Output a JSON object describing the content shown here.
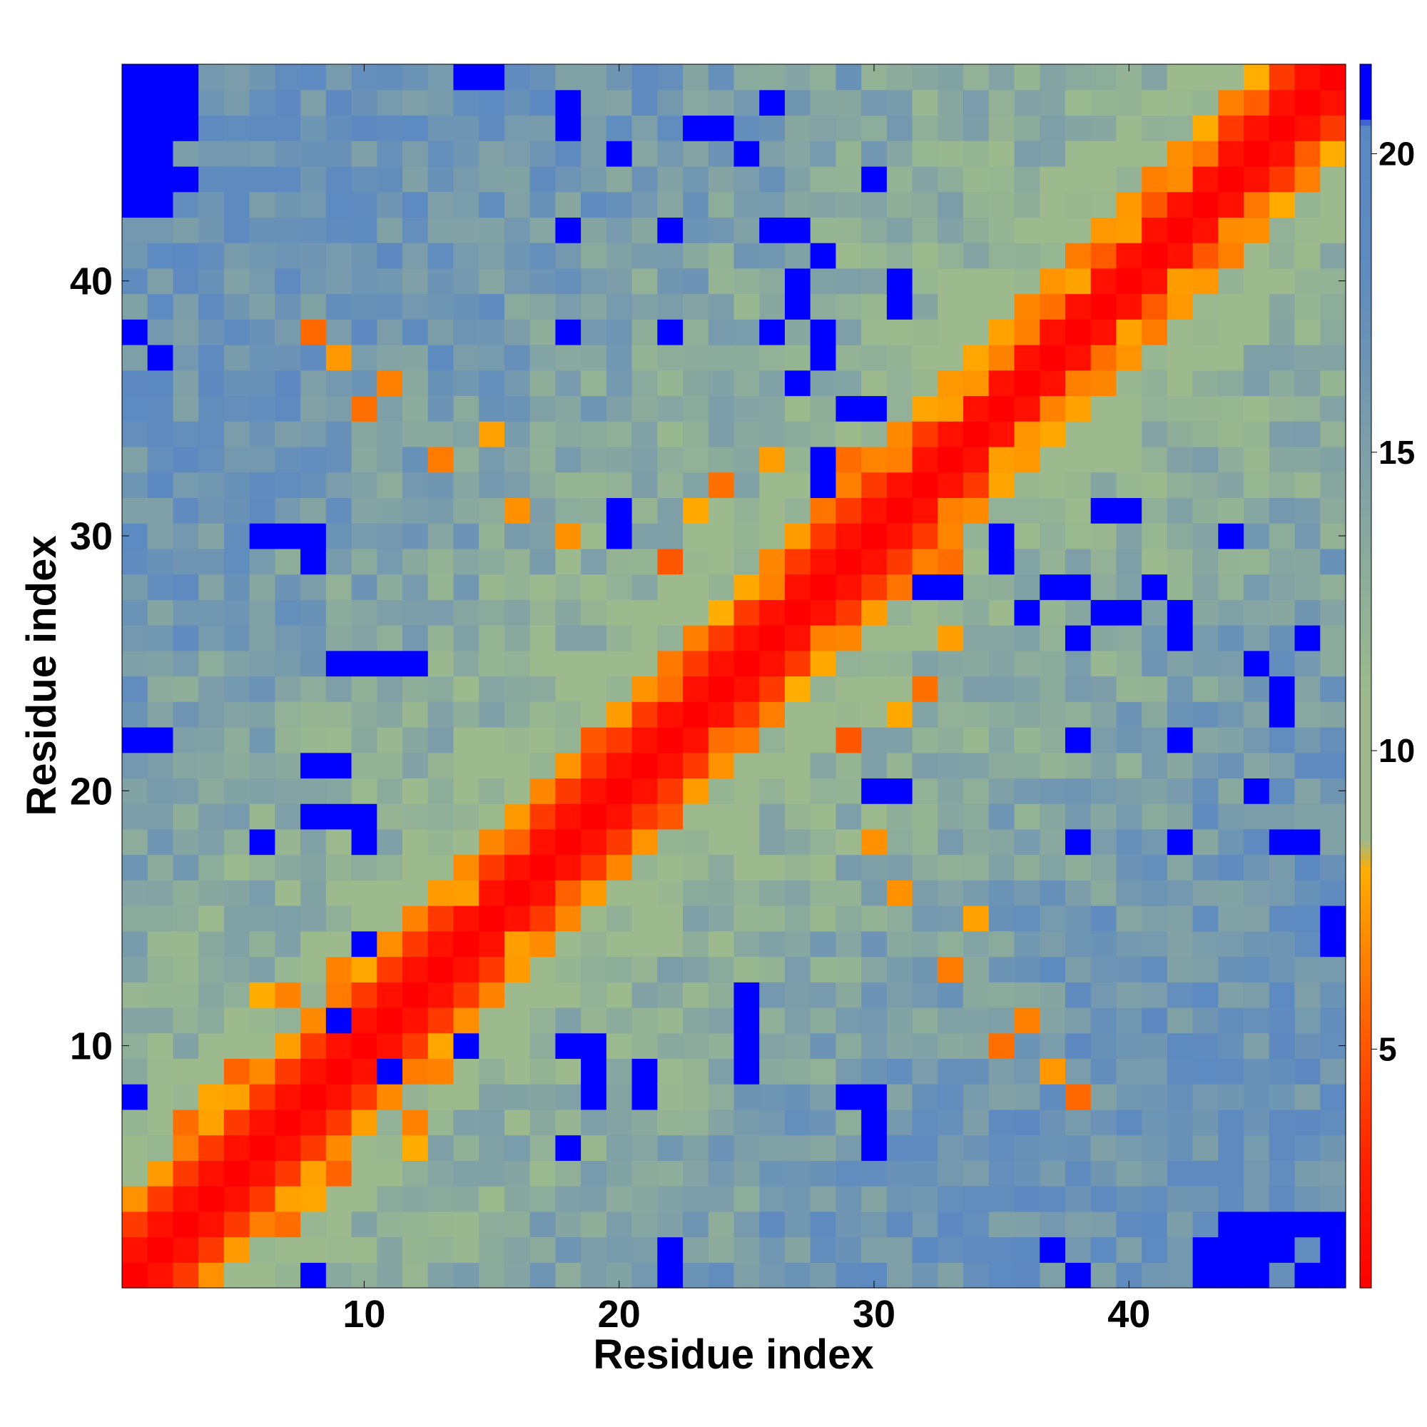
{
  "chart_data": {
    "type": "heatmap",
    "title": "",
    "xlabel": "Residue index",
    "ylabel": "Residue index",
    "n": 48,
    "xlim": [
      0.5,
      48.5
    ],
    "ylim": [
      0.5,
      48.5
    ],
    "xticks": [
      10,
      20,
      30,
      40
    ],
    "yticks": [
      10,
      20,
      30,
      40
    ],
    "colorbar": {
      "min": 1,
      "max": 21.5,
      "ticks": [
        5,
        10,
        15,
        20
      ],
      "position": "right",
      "palette": [
        {
          "v": 1,
          "c": "#ff0000"
        },
        {
          "v": 3,
          "c": "#ff1f00"
        },
        {
          "v": 5.5,
          "c": "#ff6300"
        },
        {
          "v": 8,
          "c": "#ffad00"
        },
        {
          "v": 8.5,
          "c": "#9dba8c"
        },
        {
          "v": 11,
          "c": "#9cba8e"
        },
        {
          "v": 15,
          "c": "#7e9fa8"
        },
        {
          "v": 18,
          "c": "#5f8bbf"
        },
        {
          "v": 20.5,
          "c": "#5a87c2"
        },
        {
          "v": 20.6,
          "c": "#0000ff"
        },
        {
          "v": 21.5,
          "c": "#0000ff"
        }
      ]
    },
    "note_values": "Symmetric distance-like matrix: values grow with |i-j|; blue (>20) cells at far corners and scattered, red/orange near the diagonal.",
    "special_low": [
      [
        3,
        7
      ],
      [
        4,
        8
      ],
      [
        5,
        9
      ],
      [
        6,
        12
      ],
      [
        7,
        12
      ],
      [
        9,
        13
      ],
      [
        11,
        14
      ],
      [
        14,
        16
      ],
      [
        16,
        18
      ],
      [
        17,
        20
      ],
      [
        19,
        22
      ],
      [
        22,
        24
      ],
      [
        24,
        27
      ],
      [
        26,
        28
      ],
      [
        28,
        31
      ],
      [
        31,
        33
      ],
      [
        33,
        35
      ],
      [
        35,
        37
      ],
      [
        37,
        39
      ],
      [
        39,
        41
      ],
      [
        41,
        43
      ],
      [
        43,
        45
      ],
      [
        45,
        47
      ],
      [
        8,
        38
      ],
      [
        9,
        37
      ],
      [
        10,
        35
      ],
      [
        11,
        36
      ],
      [
        13,
        33
      ],
      [
        15,
        34
      ],
      [
        16,
        31
      ],
      [
        18,
        30
      ],
      [
        22,
        29
      ],
      [
        23,
        31
      ],
      [
        24,
        32
      ],
      [
        26,
        33
      ],
      [
        29,
        33
      ],
      [
        31,
        34
      ],
      [
        34,
        36
      ],
      [
        36,
        38
      ],
      [
        38,
        40
      ],
      [
        40,
        42
      ],
      [
        42,
        44
      ]
    ],
    "special_high": [
      [
        1,
        8
      ],
      [
        2,
        22
      ],
      [
        2,
        37
      ],
      [
        1,
        47
      ],
      [
        1,
        44
      ],
      [
        1,
        45
      ],
      [
        8,
        29
      ],
      [
        8,
        30
      ],
      [
        10,
        14
      ],
      [
        10,
        18
      ],
      [
        10,
        19
      ],
      [
        11,
        9
      ],
      [
        18,
        6
      ],
      [
        19,
        8
      ],
      [
        19,
        9
      ],
      [
        20,
        30
      ],
      [
        21,
        8
      ],
      [
        21,
        9
      ],
      [
        22,
        1
      ],
      [
        25,
        9
      ],
      [
        25,
        10
      ],
      [
        25,
        11
      ],
      [
        25,
        12
      ],
      [
        26,
        38
      ],
      [
        27,
        36
      ],
      [
        27,
        39
      ],
      [
        28,
        33
      ],
      [
        28,
        37
      ],
      [
        28,
        41
      ],
      [
        30,
        6
      ],
      [
        30,
        7
      ],
      [
        30,
        35
      ],
      [
        30,
        44
      ],
      [
        31,
        20
      ],
      [
        31,
        39
      ],
      [
        32,
        28
      ],
      [
        35,
        29
      ],
      [
        38,
        1
      ],
      [
        38,
        18
      ],
      [
        38,
        22
      ],
      [
        38,
        28
      ],
      [
        39,
        27
      ],
      [
        40,
        27
      ],
      [
        40,
        31
      ],
      [
        42,
        18
      ],
      [
        42,
        22
      ],
      [
        42,
        26
      ],
      [
        42,
        27
      ],
      [
        43,
        1
      ],
      [
        43,
        2
      ],
      [
        45,
        20
      ],
      [
        45,
        25
      ],
      [
        46,
        18
      ],
      [
        46,
        23
      ],
      [
        46,
        24
      ],
      [
        47,
        18
      ],
      [
        47,
        26
      ],
      [
        48,
        14
      ],
      [
        48,
        15
      ]
    ]
  }
}
